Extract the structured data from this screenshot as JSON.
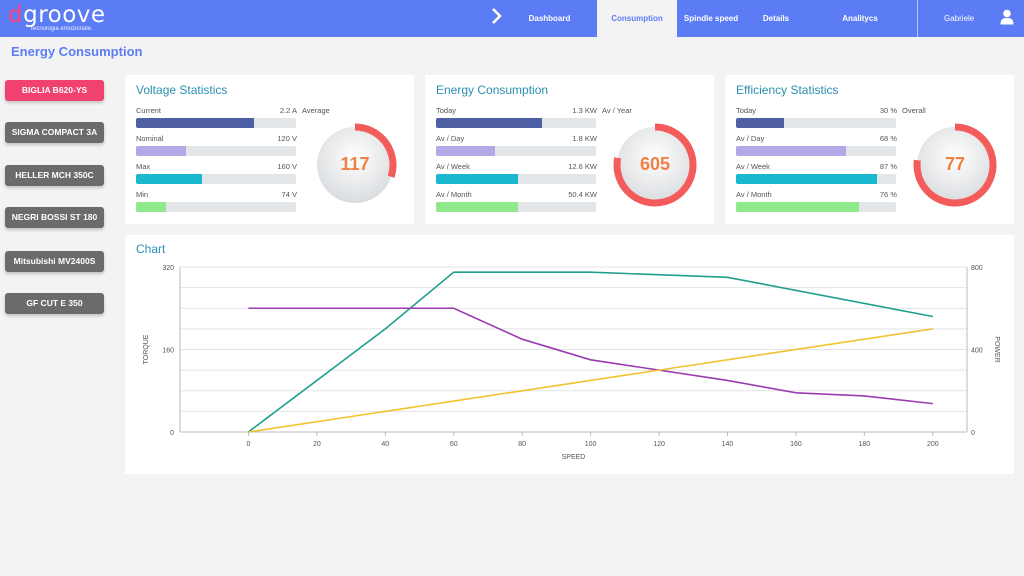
{
  "app": {
    "logo_text": "groove",
    "logo_d": "d",
    "logo_tagline": "Tecnologia emozionale."
  },
  "nav": {
    "items": [
      {
        "label": "Dashboard",
        "active": false
      },
      {
        "label": "Consumption",
        "active": true
      },
      {
        "label": "Spindle speed",
        "active": false
      },
      {
        "label": "Details",
        "active": false
      },
      {
        "label": "Analitycs",
        "active": false
      }
    ],
    "user": "Gabriele"
  },
  "page": {
    "title": "Energy Consumption"
  },
  "machines": [
    {
      "label": "BIGLIA B620-YS",
      "active": true
    },
    {
      "label": "SIGMA COMPACT 3A",
      "active": false
    },
    {
      "label": "HELLER MCH 350C",
      "active": false
    },
    {
      "label": "NEGRI BOSSI ST 180",
      "active": false
    },
    {
      "label": "Mitsubishi MV2400S",
      "active": false
    },
    {
      "label": "GF CUT E 350",
      "active": false
    }
  ],
  "voltage": {
    "title": "Voltage Statistics",
    "side_label": "Average",
    "gauge_value": "117",
    "gauge_fraction": 0.3,
    "rows": [
      {
        "label": "Current",
        "value": "2.2 A",
        "fill": 0.74,
        "color": "#4e5fa3"
      },
      {
        "label": "Nominal",
        "value": "120 V",
        "fill": 0.31,
        "color": "#b3a9e6"
      },
      {
        "label": "Max",
        "value": "160 V",
        "fill": 0.41,
        "color": "#1ab8cf"
      },
      {
        "label": "Min",
        "value": "74 V",
        "fill": 0.19,
        "color": "#8ee98a"
      }
    ]
  },
  "energy": {
    "title": "Energy Consumption",
    "side_label": "Av / Year",
    "gauge_value": "605",
    "gauge_fraction": 0.78,
    "rows": [
      {
        "label": "Today",
        "value": "1.3 KW",
        "fill": 0.66,
        "color": "#4e5fa3"
      },
      {
        "label": "Av / Day",
        "value": "1.8 KW",
        "fill": 0.37,
        "color": "#b3a9e6"
      },
      {
        "label": "Av / Week",
        "value": "12.6 KW",
        "fill": 0.51,
        "color": "#1ab8cf"
      },
      {
        "label": "Av / Month",
        "value": "50.4 KW",
        "fill": 0.51,
        "color": "#8ee98a"
      }
    ]
  },
  "efficiency": {
    "title": "Efficiency Statistics",
    "side_label": "Overall",
    "gauge_value": "77",
    "gauge_fraction": 0.77,
    "rows": [
      {
        "label": "Today",
        "value": "30 %",
        "fill": 0.3,
        "color": "#4e5fa3"
      },
      {
        "label": "Av / Day",
        "value": "68 %",
        "fill": 0.69,
        "color": "#b3a9e6"
      },
      {
        "label": "Av / Week",
        "value": "87 %",
        "fill": 0.88,
        "color": "#1ab8cf"
      },
      {
        "label": "Av / Month",
        "value": "76 %",
        "fill": 0.77,
        "color": "#8ee98a"
      }
    ]
  },
  "chart_data": {
    "type": "line",
    "title": "Chart",
    "xlabel": "SPEED",
    "ylabel": "TORQUE",
    "y2label": "POWER",
    "xlim": [
      -20,
      210
    ],
    "ylim": [
      0,
      320
    ],
    "y2lim": [
      0,
      800
    ],
    "x_ticks": [
      "0",
      "20",
      "40",
      "60",
      "80",
      "100",
      "120",
      "140",
      "160",
      "180",
      "200"
    ],
    "y_ticks": [
      "0",
      "160",
      "320"
    ],
    "y2_ticks": [
      "0",
      "400",
      "800"
    ],
    "series": [
      {
        "axis": "right",
        "color": "#1f9e8f",
        "x": [
          0,
          40,
          60,
          100,
          140,
          200
        ],
        "values": [
          0,
          500,
          775,
          775,
          750,
          560
        ]
      },
      {
        "axis": "left",
        "color": "#9b3bb0",
        "x": [
          0,
          60,
          80,
          100,
          140,
          160,
          180,
          200
        ],
        "values": [
          240,
          240,
          180,
          140,
          100,
          76,
          70,
          55
        ]
      },
      {
        "axis": "left",
        "color": "#f2c12e",
        "x": [
          0,
          200
        ],
        "values": [
          0,
          200
        ]
      }
    ]
  }
}
